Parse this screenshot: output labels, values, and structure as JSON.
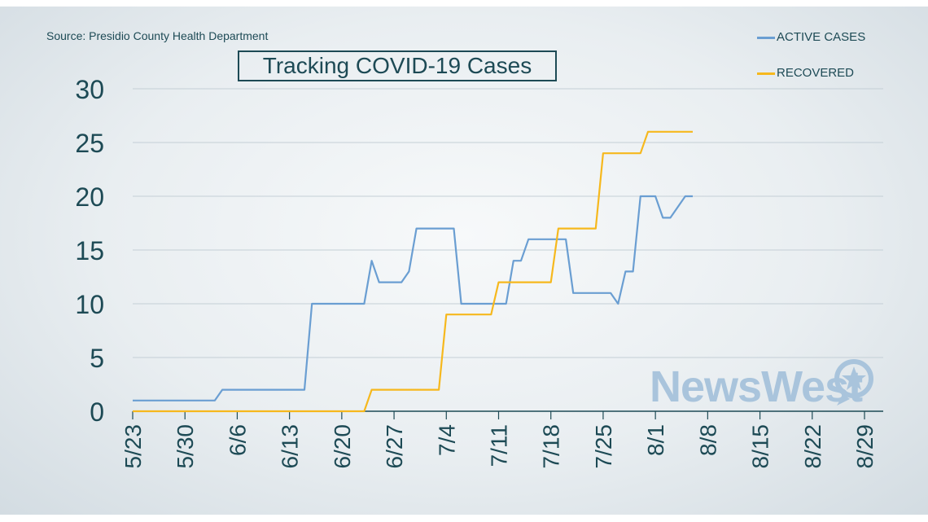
{
  "source": "Source: Presidio County Health Department",
  "colors": {
    "active": "#6a9ed2",
    "recovered": "#f6b81d",
    "text": "#1d4a55",
    "grid": "#c4cfd6"
  },
  "watermark": "NewsWest",
  "watermark_icon": "star-icon",
  "chart_data": {
    "type": "line",
    "title": "Tracking COVID-19 Cases",
    "xlabel": "",
    "ylabel": "",
    "ylim": [
      0,
      30
    ],
    "yticks": [
      0,
      5,
      10,
      15,
      20,
      25,
      30
    ],
    "xlim": [
      "5/23",
      "8/31"
    ],
    "xticks": [
      "5/23",
      "5/30",
      "6/6",
      "6/13",
      "6/20",
      "6/27",
      "7/4",
      "7/11",
      "7/18",
      "7/25",
      "8/1",
      "8/8",
      "8/15",
      "8/22",
      "8/29"
    ],
    "grid": "horizontal",
    "legend": "top-right",
    "series": [
      {
        "name": "ACTIVE CASES",
        "color": "#6a9ed2",
        "points": [
          [
            "5/23",
            1
          ],
          [
            "6/3",
            1
          ],
          [
            "6/4",
            2
          ],
          [
            "6/15",
            2
          ],
          [
            "6/16",
            10
          ],
          [
            "6/23",
            10
          ],
          [
            "6/24",
            14
          ],
          [
            "6/25",
            12
          ],
          [
            "6/28",
            12
          ],
          [
            "6/29",
            13
          ],
          [
            "6/30",
            17
          ],
          [
            "7/5",
            17
          ],
          [
            "7/6",
            10
          ],
          [
            "7/12",
            10
          ],
          [
            "7/13",
            14
          ],
          [
            "7/14",
            14
          ],
          [
            "7/15",
            16
          ],
          [
            "7/20",
            16
          ],
          [
            "7/21",
            11
          ],
          [
            "7/26",
            11
          ],
          [
            "7/27",
            10
          ],
          [
            "7/28",
            13
          ],
          [
            "7/29",
            13
          ],
          [
            "7/30",
            20
          ],
          [
            "8/1",
            20
          ],
          [
            "8/2",
            18
          ],
          [
            "8/3",
            18
          ],
          [
            "8/5",
            20
          ],
          [
            "8/6",
            20
          ]
        ]
      },
      {
        "name": "RECOVERED",
        "color": "#f6b81d",
        "points": [
          [
            "5/23",
            0
          ],
          [
            "6/23",
            0
          ],
          [
            "6/24",
            2
          ],
          [
            "7/3",
            2
          ],
          [
            "7/4",
            9
          ],
          [
            "7/10",
            9
          ],
          [
            "7/11",
            12
          ],
          [
            "7/18",
            12
          ],
          [
            "7/19",
            17
          ],
          [
            "7/24",
            17
          ],
          [
            "7/25",
            24
          ],
          [
            "7/30",
            24
          ],
          [
            "7/31",
            26
          ],
          [
            "8/6",
            26
          ]
        ]
      }
    ]
  }
}
